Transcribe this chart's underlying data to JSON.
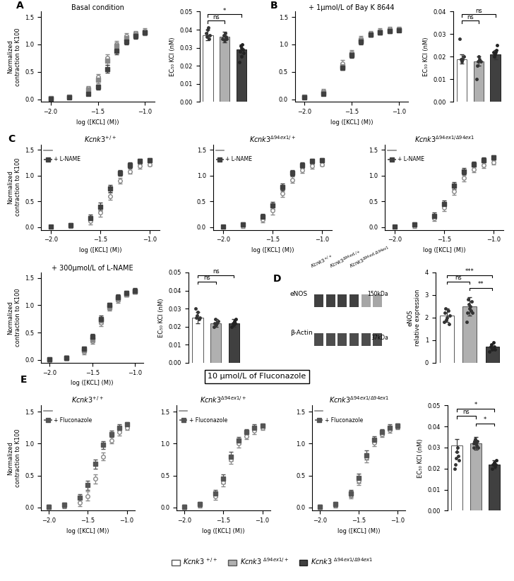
{
  "colors": {
    "wt": "#ffffff",
    "het": "#b0b0b0",
    "hom": "#404040",
    "wt_line": "#888888",
    "het_line": "#888888",
    "hom_line": "#404040"
  },
  "panel_A": {
    "title": "Basal condition",
    "x": [
      -2.0,
      -1.8,
      -1.6,
      -1.5,
      -1.4,
      -1.3,
      -1.2,
      -1.1,
      -1.0
    ],
    "wt_y": [
      0.02,
      0.05,
      0.2,
      0.4,
      0.75,
      1.0,
      1.15,
      1.2,
      1.25
    ],
    "het_y": [
      0.02,
      0.05,
      0.18,
      0.35,
      0.7,
      0.98,
      1.12,
      1.18,
      1.22
    ],
    "hom_y": [
      0.01,
      0.03,
      0.1,
      0.22,
      0.55,
      0.88,
      1.05,
      1.15,
      1.22
    ],
    "wt_err": [
      0.01,
      0.02,
      0.04,
      0.06,
      0.07,
      0.06,
      0.05,
      0.05,
      0.05
    ],
    "het_err": [
      0.01,
      0.02,
      0.04,
      0.06,
      0.07,
      0.06,
      0.05,
      0.05,
      0.05
    ],
    "hom_err": [
      0.01,
      0.02,
      0.03,
      0.05,
      0.07,
      0.06,
      0.05,
      0.05,
      0.04
    ],
    "bar_vals": [
      0.037,
      0.036,
      0.029
    ],
    "bar_errs": [
      0.003,
      0.003,
      0.003
    ],
    "bar_dots_wt": [
      0.038,
      0.036,
      0.04,
      0.041,
      0.035,
      0.037
    ],
    "bar_dots_het": [
      0.035,
      0.037,
      0.034,
      0.038,
      0.036,
      0.035
    ],
    "bar_dots_hom": [
      0.022,
      0.028,
      0.031,
      0.025,
      0.03,
      0.032,
      0.029,
      0.027
    ],
    "ylim_bar": [
      0.0,
      0.05
    ],
    "yticks_bar": [
      0.0,
      0.01,
      0.02,
      0.03,
      0.04,
      0.05
    ],
    "sig_wt_het": "ns",
    "sig_wt_hom": "*",
    "sig_het_hom": "*"
  },
  "panel_B": {
    "title": "+ 1μmol/L of Bay K 8644",
    "x": [
      -2.0,
      -1.8,
      -1.6,
      -1.5,
      -1.4,
      -1.3,
      -1.2,
      -1.1,
      -1.0
    ],
    "wt_y": [
      0.05,
      0.15,
      0.65,
      0.85,
      1.1,
      1.2,
      1.25,
      1.28,
      1.28
    ],
    "het_y": [
      0.05,
      0.12,
      0.6,
      0.82,
      1.08,
      1.18,
      1.23,
      1.26,
      1.27
    ],
    "hom_y": [
      0.03,
      0.1,
      0.58,
      0.8,
      1.05,
      1.18,
      1.22,
      1.25,
      1.26
    ],
    "wt_err": [
      0.02,
      0.04,
      0.06,
      0.05,
      0.05,
      0.04,
      0.04,
      0.04,
      0.04
    ],
    "het_err": [
      0.02,
      0.03,
      0.06,
      0.05,
      0.05,
      0.04,
      0.04,
      0.04,
      0.04
    ],
    "hom_err": [
      0.02,
      0.03,
      0.05,
      0.05,
      0.05,
      0.04,
      0.04,
      0.04,
      0.03
    ],
    "bar_vals": [
      0.019,
      0.018,
      0.021
    ],
    "bar_errs": [
      0.002,
      0.002,
      0.002
    ],
    "bar_dots_wt": [
      0.028,
      0.019,
      0.018,
      0.019,
      0.02
    ],
    "bar_dots_het": [
      0.01,
      0.016,
      0.018,
      0.02,
      0.019,
      0.018
    ],
    "bar_dots_hom": [
      0.022,
      0.02,
      0.021,
      0.022,
      0.023,
      0.025
    ],
    "ylim_bar": [
      0.0,
      0.04
    ],
    "yticks_bar": [
      0.0,
      0.01,
      0.02,
      0.03,
      0.04
    ],
    "sig_wt_het": "ns",
    "sig_wt_hom": "ns"
  },
  "panel_C": {
    "legend_label": "+ L-NAME",
    "x": [
      -2.0,
      -1.8,
      -1.6,
      -1.5,
      -1.4,
      -1.3,
      -1.2,
      -1.1,
      -1.0
    ],
    "wt_base_y": [
      0.01,
      0.03,
      0.12,
      0.28,
      0.6,
      0.9,
      1.08,
      1.18,
      1.22
    ],
    "wt_lname_y": [
      0.01,
      0.04,
      0.18,
      0.4,
      0.75,
      1.05,
      1.2,
      1.28,
      1.3
    ],
    "het_base_y": [
      0.01,
      0.03,
      0.15,
      0.32,
      0.65,
      0.92,
      1.1,
      1.18,
      1.22
    ],
    "het_lname_y": [
      0.01,
      0.05,
      0.2,
      0.42,
      0.78,
      1.05,
      1.2,
      1.28,
      1.3
    ],
    "hom_base_y": [
      0.01,
      0.03,
      0.18,
      0.38,
      0.7,
      0.95,
      1.12,
      1.2,
      1.25
    ],
    "hom_lname_y": [
      0.01,
      0.05,
      0.22,
      0.45,
      0.8,
      1.08,
      1.22,
      1.3,
      1.35
    ],
    "err": [
      0.03,
      0.04,
      0.06,
      0.07,
      0.07,
      0.06,
      0.05,
      0.05,
      0.04
    ],
    "summary_title": "+ 300μmol/L of L-NAME",
    "sum_x": [
      -2.0,
      -1.8,
      -1.6,
      -1.5,
      -1.4,
      -1.3,
      -1.2,
      -1.1,
      -1.0
    ],
    "sum_wt_y": [
      0.01,
      0.04,
      0.15,
      0.35,
      0.68,
      0.95,
      1.1,
      1.2,
      1.25
    ],
    "sum_het_y": [
      0.01,
      0.04,
      0.18,
      0.38,
      0.72,
      0.97,
      1.12,
      1.2,
      1.25
    ],
    "sum_hom_y": [
      0.01,
      0.04,
      0.2,
      0.42,
      0.75,
      1.0,
      1.15,
      1.22,
      1.27
    ],
    "sum_err": [
      0.03,
      0.04,
      0.05,
      0.06,
      0.06,
      0.05,
      0.05,
      0.04,
      0.04
    ],
    "bar_vals": [
      0.025,
      0.022,
      0.022
    ],
    "bar_errs": [
      0.003,
      0.002,
      0.002
    ],
    "bar_dots_wt": [
      0.03,
      0.025,
      0.026,
      0.028,
      0.024,
      0.025
    ],
    "bar_dots_het": [
      0.02,
      0.022,
      0.024,
      0.021,
      0.022,
      0.023
    ],
    "bar_dots_hom": [
      0.02,
      0.022,
      0.021,
      0.023,
      0.022,
      0.024
    ],
    "ylim_bar": [
      0.0,
      0.05
    ],
    "yticks_bar": [
      0.0,
      0.01,
      0.02,
      0.03,
      0.04,
      0.05
    ],
    "sig_wt_het": "ns",
    "sig_wt_hom": "ns"
  },
  "panel_D": {
    "eNOS_bar_vals": [
      2.1,
      2.5,
      0.7
    ],
    "eNOS_bar_errs": [
      0.3,
      0.4,
      0.15
    ],
    "dots_wt": [
      1.8,
      2.2,
      2.4,
      1.9,
      2.0,
      2.3,
      1.7,
      2.1
    ],
    "dots_het": [
      1.8,
      2.2,
      2.8,
      2.6,
      2.4,
      2.5,
      2.3,
      2.7,
      2.2
    ],
    "dots_hom": [
      0.5,
      0.7,
      0.8,
      0.6,
      0.9,
      0.7,
      0.6
    ],
    "ylim": [
      0,
      4
    ],
    "yticks": [
      0,
      1,
      2,
      3,
      4
    ],
    "ylabel": "eNOS\nrelative expression",
    "sig_wt_het": "ns",
    "sig_wt_hom": "***",
    "sig_het_hom": "**"
  },
  "panel_E": {
    "title_box": "10 μmol/L of Fluconazole",
    "legend_label": "+ Fluconazole",
    "x": [
      -2.0,
      -1.8,
      -1.6,
      -1.5,
      -1.4,
      -1.3,
      -1.2,
      -1.1,
      -1.0
    ],
    "wt_base_y": [
      0.01,
      0.03,
      0.08,
      0.18,
      0.45,
      0.8,
      1.05,
      1.18,
      1.25
    ],
    "wt_fluc_y": [
      0.01,
      0.04,
      0.15,
      0.35,
      0.68,
      0.98,
      1.15,
      1.25,
      1.3
    ],
    "het_base_y": [
      0.01,
      0.04,
      0.18,
      0.4,
      0.75,
      1.0,
      1.12,
      1.2,
      1.25
    ],
    "het_fluc_y": [
      0.01,
      0.05,
      0.22,
      0.45,
      0.8,
      1.05,
      1.18,
      1.25,
      1.28
    ],
    "hom_base_y": [
      0.01,
      0.04,
      0.2,
      0.42,
      0.78,
      1.02,
      1.15,
      1.22,
      1.27
    ],
    "hom_fluc_y": [
      0.01,
      0.05,
      0.22,
      0.46,
      0.82,
      1.06,
      1.18,
      1.25,
      1.28
    ],
    "err": [
      0.03,
      0.04,
      0.06,
      0.07,
      0.07,
      0.06,
      0.05,
      0.05,
      0.04
    ],
    "bar_vals": [
      0.031,
      0.032,
      0.022
    ],
    "bar_errs": [
      0.003,
      0.003,
      0.002
    ],
    "bar_dots_wt": [
      0.02,
      0.022,
      0.025,
      0.028,
      0.03,
      0.026,
      0.024
    ],
    "bar_dots_het": [
      0.03,
      0.032,
      0.033,
      0.034,
      0.032,
      0.031,
      0.033,
      0.03
    ],
    "bar_dots_hom": [
      0.02,
      0.022,
      0.023,
      0.021,
      0.022,
      0.024
    ],
    "ylim_bar": [
      0.0,
      0.05
    ],
    "yticks_bar": [
      0.0,
      0.01,
      0.02,
      0.03,
      0.04,
      0.05
    ],
    "sig_wt_het": "ns",
    "sig_wt_hom": "*",
    "sig_het_hom": "*"
  },
  "legend": {
    "wt_label": "$Kcnk3$ $^{+/+}$",
    "het_label": "$Kcnk3$ $^{\\Delta94ex1/+}$",
    "hom_label": "$Kcnk3$ $^{\\Delta94ex1/\\Delta94ex1}$"
  }
}
